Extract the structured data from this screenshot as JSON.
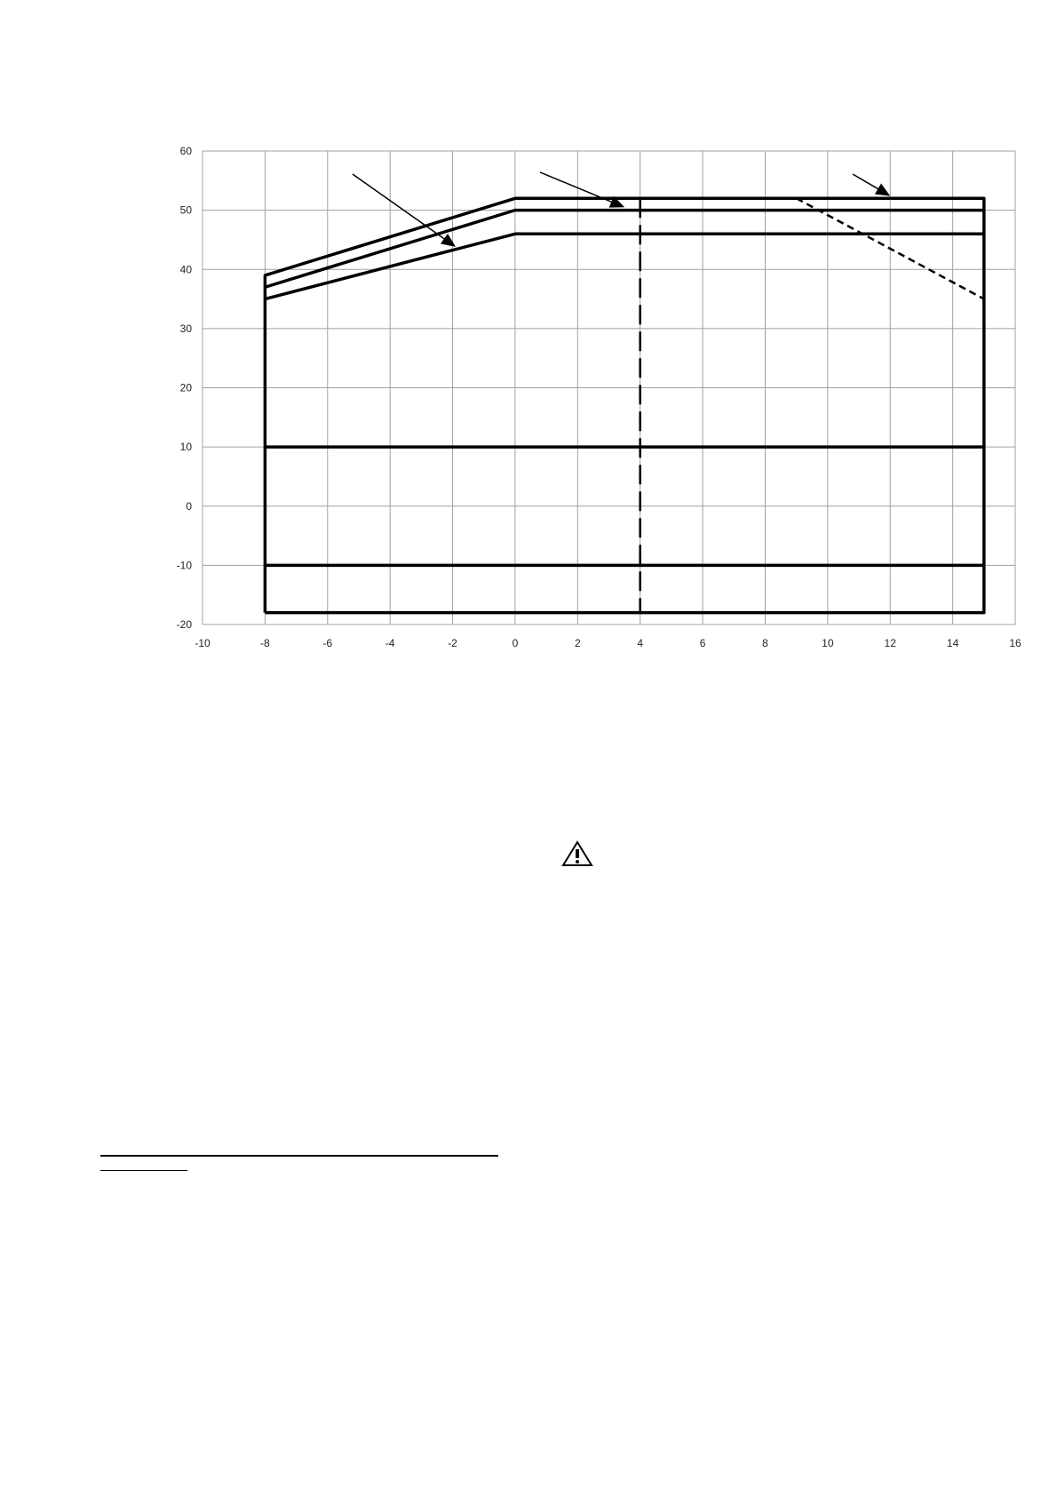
{
  "chart_data": {
    "type": "line",
    "title": "",
    "xlabel": "",
    "ylabel": "",
    "xlim": [
      -10,
      16
    ],
    "ylim": [
      -20,
      60
    ],
    "xticks": [
      -10,
      -8,
      -6,
      -4,
      -2,
      0,
      2,
      4,
      6,
      8,
      10,
      12,
      14,
      16
    ],
    "yticks": [
      -20,
      -10,
      0,
      10,
      20,
      30,
      40,
      50,
      60
    ],
    "grid": true,
    "series": [
      {
        "style": "solid-thick",
        "points": [
          [
            -8,
            -18
          ],
          [
            -8,
            39
          ],
          [
            0,
            52
          ],
          [
            15,
            52
          ],
          [
            15,
            -18
          ],
          [
            -8,
            -18
          ]
        ]
      },
      {
        "style": "solid-thick",
        "points": [
          [
            -8,
            37
          ],
          [
            0,
            50
          ],
          [
            15,
            50
          ]
        ]
      },
      {
        "style": "solid-thick",
        "points": [
          [
            -8,
            35
          ],
          [
            0,
            46
          ],
          [
            15,
            46
          ]
        ]
      },
      {
        "style": "solid-thick",
        "points": [
          [
            -8,
            10
          ],
          [
            15,
            10
          ]
        ]
      },
      {
        "style": "solid-thick",
        "points": [
          [
            -8,
            -10
          ],
          [
            15,
            -10
          ]
        ]
      },
      {
        "style": "dashed-long",
        "points": [
          [
            4,
            52
          ],
          [
            4,
            -18
          ]
        ]
      },
      {
        "style": "dashed-short",
        "points": [
          [
            9,
            52
          ],
          [
            15,
            35
          ]
        ]
      }
    ],
    "annotations": [
      {
        "type": "arrow",
        "from": [
          -5.2,
          56.1
        ],
        "to": [
          -1.9,
          43.8
        ]
      },
      {
        "type": "arrow",
        "from": [
          0.8,
          56.4
        ],
        "to": [
          3.5,
          50.5
        ]
      },
      {
        "type": "arrow",
        "from": [
          10.8,
          56.1
        ],
        "to": [
          12.0,
          52.4
        ]
      }
    ]
  },
  "icons": {
    "warning": "warning-triangle-icon"
  },
  "colors": {
    "line": "#000000",
    "grid": "#a0a0a0"
  }
}
